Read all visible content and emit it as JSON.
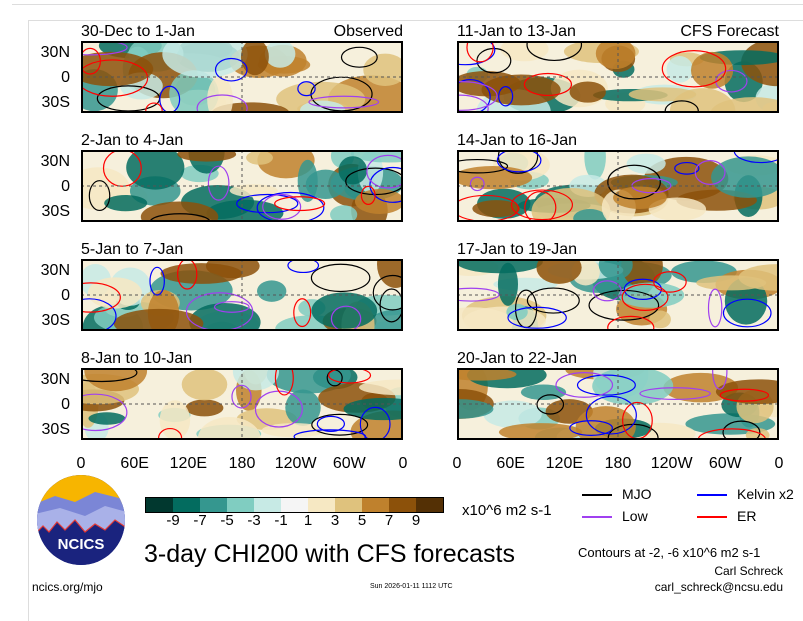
{
  "panels": [
    {
      "title": "30-Dec to 1-Jan",
      "tag": "Observed",
      "col": 0,
      "row": 0,
      "seed": 3
    },
    {
      "title": "2-Jan to 4-Jan",
      "tag": "",
      "col": 0,
      "row": 1,
      "seed": 7
    },
    {
      "title": "5-Jan to 7-Jan",
      "tag": "",
      "col": 0,
      "row": 2,
      "seed": 11
    },
    {
      "title": "8-Jan to 10-Jan",
      "tag": "",
      "col": 0,
      "row": 3,
      "seed": 19
    },
    {
      "title": "11-Jan to 13-Jan",
      "tag": "CFS Forecast",
      "col": 1,
      "row": 0,
      "seed": 23
    },
    {
      "title": "14-Jan to 16-Jan",
      "tag": "",
      "col": 1,
      "row": 1,
      "seed": 29
    },
    {
      "title": "17-Jan to 19-Jan",
      "tag": "",
      "col": 1,
      "row": 2,
      "seed": 31
    },
    {
      "title": "20-Jan to 22-Jan",
      "tag": "",
      "col": 1,
      "row": 3,
      "seed": 37
    }
  ],
  "y_ticks": [
    "30N",
    "0",
    "30S"
  ],
  "x_ticks": [
    "0",
    "60E",
    "120E",
    "180",
    "120W",
    "60W",
    "0"
  ],
  "colorbar": {
    "labels": [
      "-9",
      "-7",
      "-5",
      "-3",
      "-1",
      "1",
      "3",
      "5",
      "7",
      "9"
    ],
    "colors": [
      "#01382f",
      "#036c5f",
      "#35978f",
      "#80cdc1",
      "#c7eae5",
      "#f5f5f5",
      "#f6e8c3",
      "#dfc27d",
      "#bf812d",
      "#8c510a",
      "#543005"
    ],
    "units": "x10^6 m2 s-1"
  },
  "legend": [
    {
      "label": "MJO",
      "color": "#000000"
    },
    {
      "label": "Kelvin x2",
      "color": "#0000ff"
    },
    {
      "label": "Low",
      "color": "#a040f0"
    },
    {
      "label": "ER",
      "color": "#ff0000"
    }
  ],
  "contours_note": "Contours at -2, -6 x10^6 m2 s-1",
  "title": "3-day CHI200 with CFS forecasts",
  "logo_text": "NCICS",
  "site": "ncics.org/mjo",
  "timestamp": "Sun 2026-01-11 1112 UTC",
  "author": "Carl Schreck",
  "email": "carl_schreck@ncsu.edu"
}
